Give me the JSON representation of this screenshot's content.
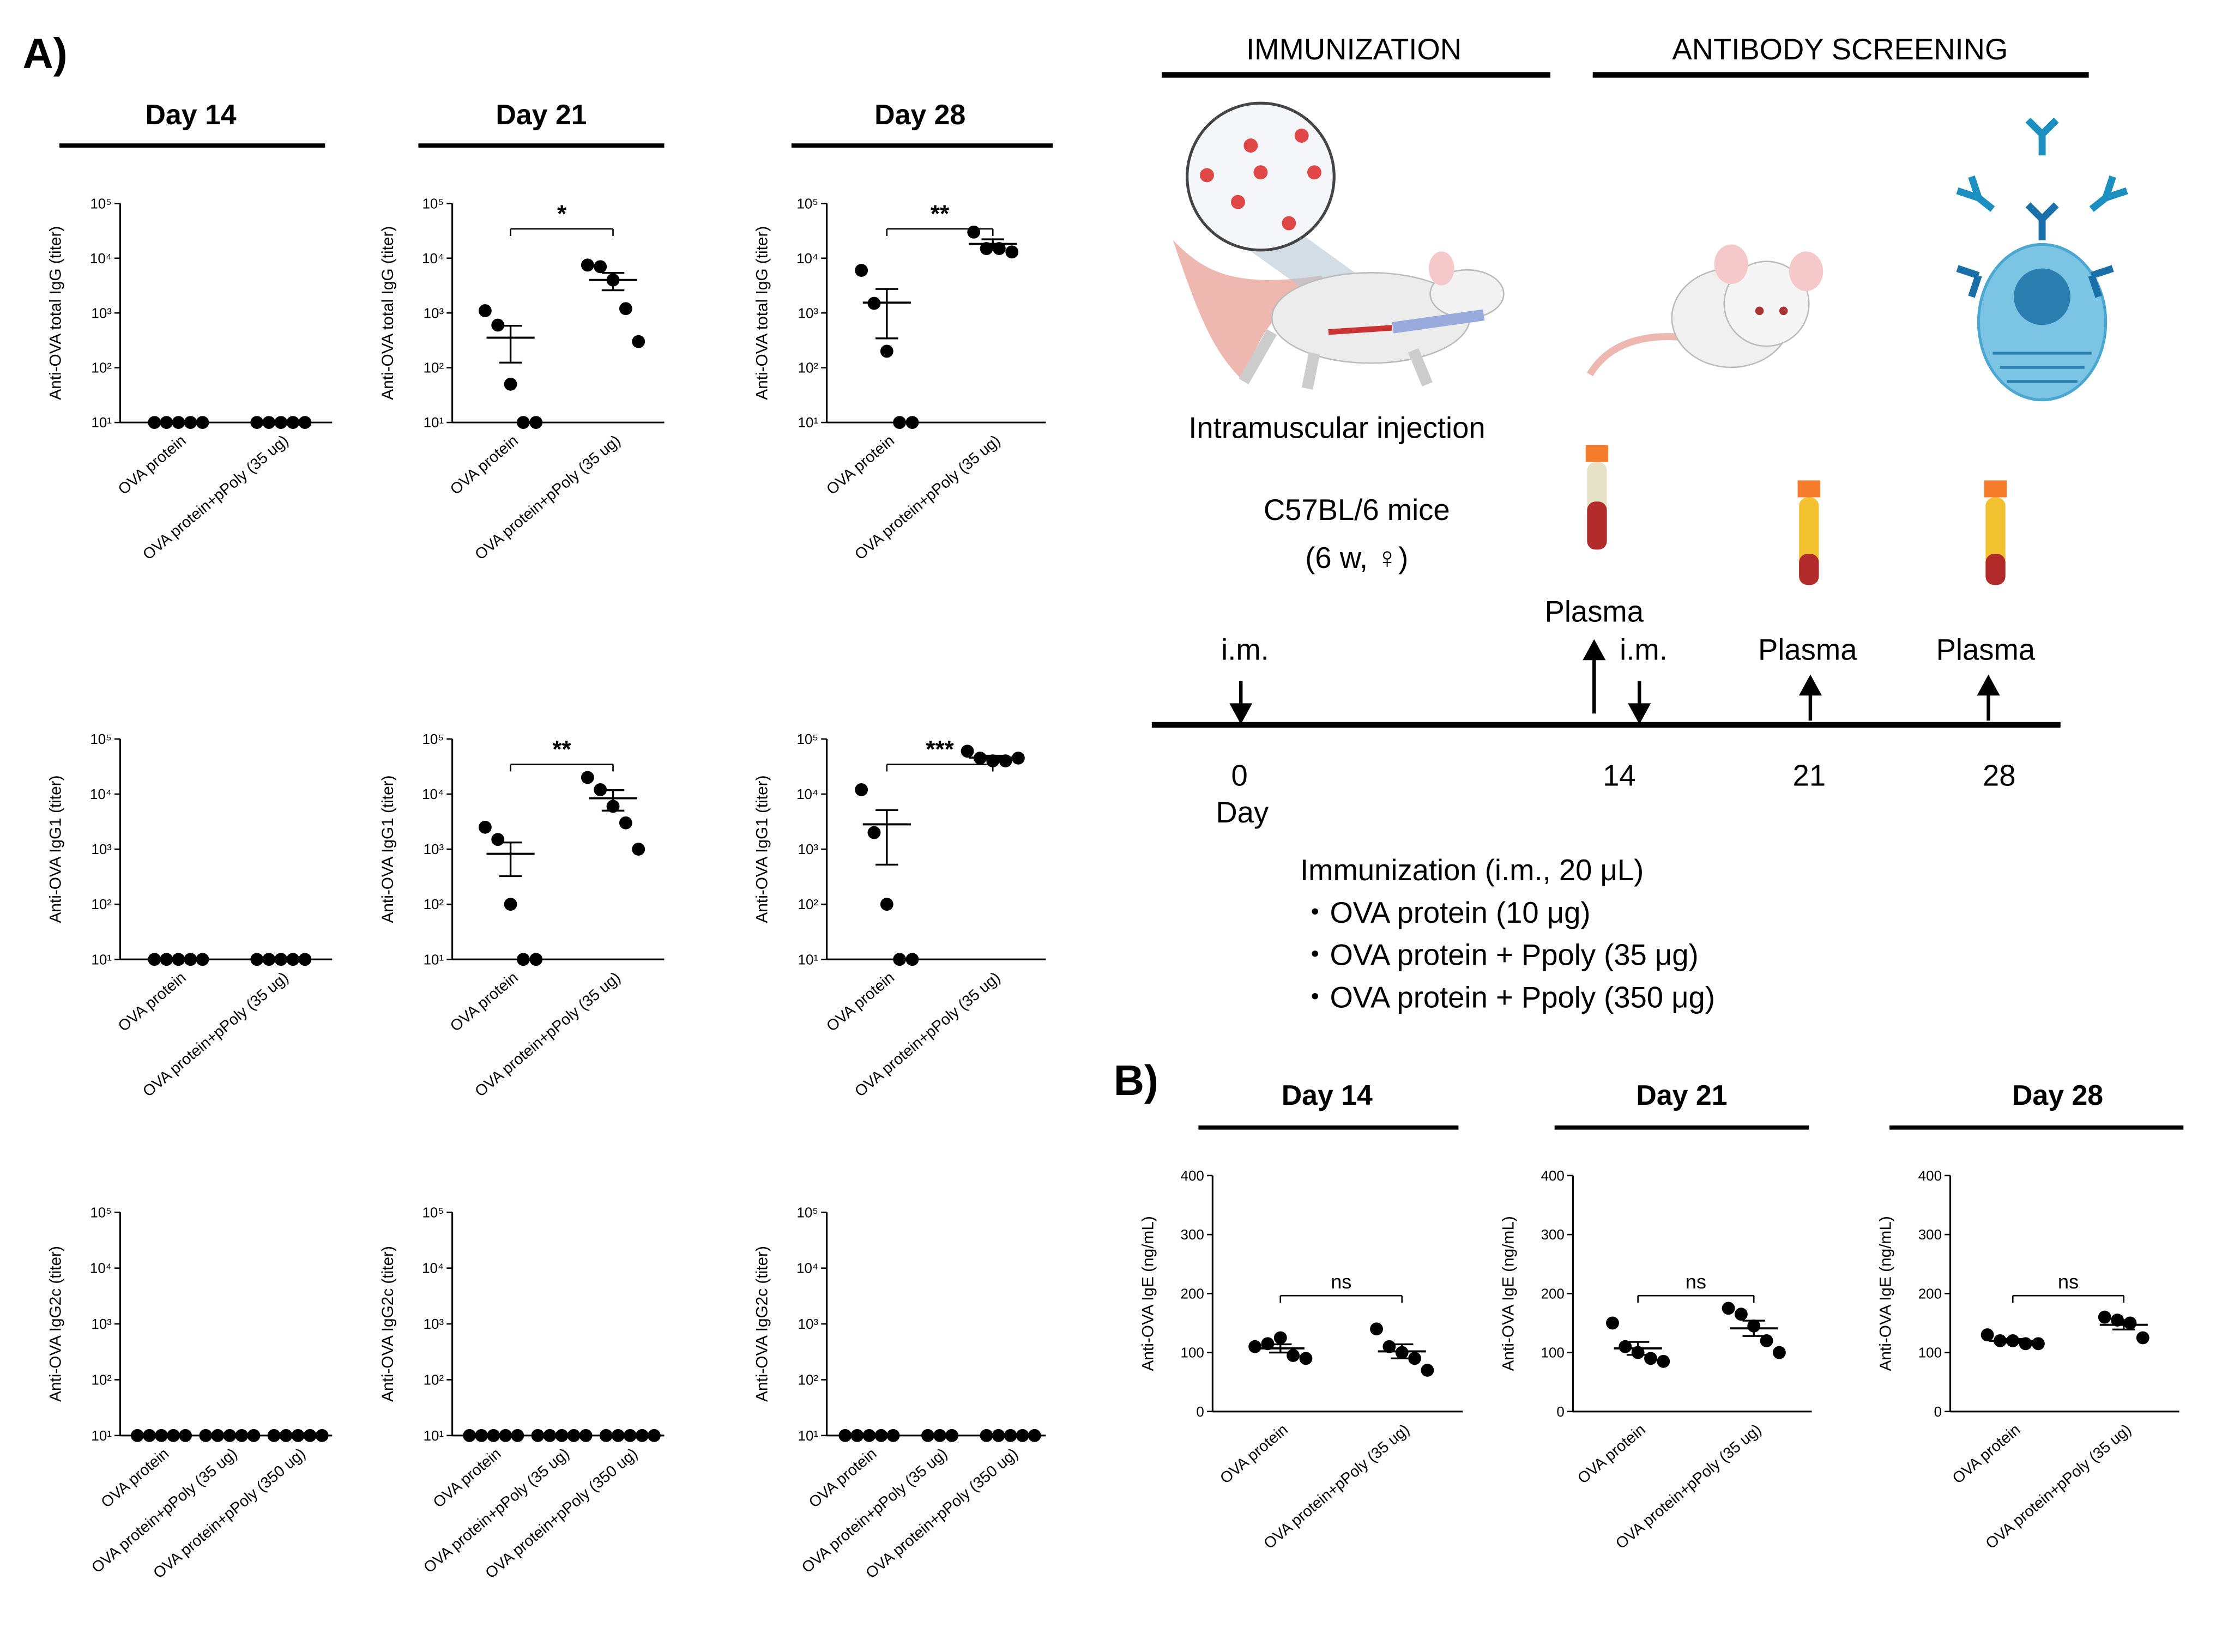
{
  "panel_labels": [
    "A)",
    "B)"
  ],
  "schematic": {
    "phase_titles": [
      "IMMUNIZATION",
      "ANTIBODY SCREENING"
    ],
    "injection_label": "Intramuscular injection",
    "mice": [
      "C57BL/6 mice",
      "(6 w, ♀)"
    ],
    "events": [
      "Plasma",
      "i.m.",
      "i.m.",
      "Plasma",
      "Plasma"
    ],
    "timeline": {
      "days": [
        0,
        14,
        21,
        28
      ],
      "unit": "Day"
    },
    "immunization": [
      "Immunization  (i.m., 20 μL)",
      "・OVA protein (10 μg)",
      "・OVA protein + Ppoly (35 μg)",
      "・OVA protein + Ppoly (350 μg)"
    ]
  },
  "chart_data": [
    {
      "type": "dot",
      "title": "Day 14",
      "ylabel": "Anti-OVA total IgG (titer)",
      "log_scale": true,
      "categories": [
        "OVA protein",
        "OVA protein+pPoly (35 ug)"
      ],
      "values": [
        [
          10,
          10,
          10,
          10,
          10
        ],
        [
          10,
          10,
          10,
          10,
          10
        ]
      ],
      "ylim": [
        10,
        100000
      ],
      "yticks": [
        {
          "value": 10,
          "label": "10¹"
        },
        {
          "value": 100,
          "label": "10²"
        },
        {
          "value": 1000,
          "label": "10³"
        },
        {
          "value": 10000,
          "label": "10⁴"
        },
        {
          "value": 100000,
          "label": "10⁵"
        }
      ]
    },
    {
      "type": "dot",
      "title": "Day 21",
      "ylabel": "Anti-OVA total IgG (titer)",
      "log_scale": true,
      "categories": [
        "OVA protein",
        "OVA protein+pPoly (35 ug)"
      ],
      "values": [
        [
          1100,
          600,
          50,
          10,
          10
        ],
        [
          7500,
          7000,
          4000,
          1200,
          300
        ]
      ],
      "mean": [
        354,
        4000
      ],
      "sem": [
        230,
        1400
      ],
      "annotation": "*",
      "ylim": [
        10,
        100000
      ],
      "yticks": [
        {
          "value": 10,
          "label": "10¹"
        },
        {
          "value": 100,
          "label": "10²"
        },
        {
          "value": 1000,
          "label": "10³"
        },
        {
          "value": 10000,
          "label": "10⁴"
        },
        {
          "value": 100000,
          "label": "10⁵"
        }
      ]
    },
    {
      "type": "dot",
      "title": "Day 28",
      "ylabel": "Anti-OVA total IgG (titer)",
      "log_scale": true,
      "categories": [
        "OVA protein",
        "OVA protein+pPoly (35 ug)"
      ],
      "values": [
        [
          6000,
          1500,
          200,
          10,
          10
        ],
        [
          30000,
          15000,
          15000,
          13000
        ]
      ],
      "mean": [
        1544,
        18250
      ],
      "sem": [
        1200,
        3900
      ],
      "annotation": "**",
      "ylim": [
        10,
        100000
      ],
      "yticks": [
        {
          "value": 10,
          "label": "10¹"
        },
        {
          "value": 100,
          "label": "10²"
        },
        {
          "value": 1000,
          "label": "10³"
        },
        {
          "value": 10000,
          "label": "10⁴"
        },
        {
          "value": 100000,
          "label": "10⁵"
        }
      ]
    },
    {
      "type": "dot",
      "ylabel": "Anti-OVA IgG1 (titer)",
      "log_scale": true,
      "categories": [
        "OVA protein",
        "OVA protein+pPoly (35 ug)"
      ],
      "values": [
        [
          10,
          10,
          10,
          10,
          10
        ],
        [
          10,
          10,
          10,
          10,
          10
        ]
      ],
      "ylim": [
        10,
        100000
      ],
      "yticks": [
        {
          "value": 10,
          "label": "10¹"
        },
        {
          "value": 100,
          "label": "10²"
        },
        {
          "value": 1000,
          "label": "10³"
        },
        {
          "value": 10000,
          "label": "10⁴"
        },
        {
          "value": 100000,
          "label": "10⁵"
        }
      ]
    },
    {
      "type": "dot",
      "ylabel": "Anti-OVA IgG1 (titer)",
      "log_scale": true,
      "categories": [
        "OVA protein",
        "OVA protein+pPoly (35 ug)"
      ],
      "values": [
        [
          2500,
          1500,
          100,
          10,
          10
        ],
        [
          20000,
          12000,
          6000,
          3000,
          1000
        ]
      ],
      "mean": [
        824,
        8400
      ],
      "sem": [
        500,
        3400
      ],
      "annotation": "**",
      "ylim": [
        10,
        100000
      ],
      "yticks": [
        {
          "value": 10,
          "label": "10¹"
        },
        {
          "value": 100,
          "label": "10²"
        },
        {
          "value": 1000,
          "label": "10³"
        },
        {
          "value": 10000,
          "label": "10⁴"
        },
        {
          "value": 100000,
          "label": "10⁵"
        }
      ]
    },
    {
      "type": "dot",
      "ylabel": "Anti-OVA IgG1 (titer)",
      "log_scale": true,
      "categories": [
        "OVA protein",
        "OVA protein+pPoly (35 ug)"
      ],
      "values": [
        [
          12000,
          2000,
          100,
          10,
          10
        ],
        [
          60000,
          45000,
          40000,
          40000,
          45000
        ]
      ],
      "mean": [
        2824,
        46000
      ],
      "sem": [
        2300,
        3700
      ],
      "annotation": "***",
      "ylim": [
        10,
        100000
      ],
      "yticks": [
        {
          "value": 10,
          "label": "10¹"
        },
        {
          "value": 100,
          "label": "10²"
        },
        {
          "value": 1000,
          "label": "10³"
        },
        {
          "value": 10000,
          "label": "10⁴"
        },
        {
          "value": 100000,
          "label": "10⁵"
        }
      ]
    },
    {
      "type": "dot",
      "ylabel": "Anti-OVA IgG2c (titer)",
      "log_scale": true,
      "categories": [
        "OVA protein",
        "OVA protein+pPoly (35 ug)",
        "OVA protein+pPoly (350 ug)"
      ],
      "values": [
        [
          10,
          10,
          10,
          10,
          10
        ],
        [
          10,
          10,
          10,
          10,
          10
        ],
        [
          10,
          10,
          10,
          10,
          10
        ]
      ],
      "ylim": [
        10,
        100000
      ],
      "yticks": [
        {
          "value": 10,
          "label": "10¹"
        },
        {
          "value": 100,
          "label": "10²"
        },
        {
          "value": 1000,
          "label": "10³"
        },
        {
          "value": 10000,
          "label": "10⁴"
        },
        {
          "value": 100000,
          "label": "10⁵"
        }
      ]
    },
    {
      "type": "dot",
      "ylabel": "Anti-OVA IgG2c (titer)",
      "log_scale": true,
      "categories": [
        "OVA protein",
        "OVA protein+pPoly (35 ug)",
        "OVA protein+pPoly (350 ug)"
      ],
      "values": [
        [
          10,
          10,
          10,
          10,
          10
        ],
        [
          10,
          10,
          10,
          10,
          10
        ],
        [
          10,
          10,
          10,
          10,
          10
        ]
      ],
      "ylim": [
        10,
        100000
      ],
      "yticks": [
        {
          "value": 10,
          "label": "10¹"
        },
        {
          "value": 100,
          "label": "10²"
        },
        {
          "value": 1000,
          "label": "10³"
        },
        {
          "value": 10000,
          "label": "10⁴"
        },
        {
          "value": 100000,
          "label": "10⁵"
        }
      ]
    },
    {
      "type": "dot",
      "ylabel": "Anti-OVA IgG2c (titer)",
      "log_scale": true,
      "categories": [
        "OVA protein",
        "OVA protein+pPoly (35 ug)",
        "OVA protein+pPoly (350 ug)"
      ],
      "values": [
        [
          10,
          10,
          10,
          10,
          10
        ],
        [
          10,
          10,
          10
        ],
        [
          10,
          10,
          10,
          10,
          10
        ]
      ],
      "ylim": [
        10,
        100000
      ],
      "yticks": [
        {
          "value": 10,
          "label": "10¹"
        },
        {
          "value": 100,
          "label": "10²"
        },
        {
          "value": 1000,
          "label": "10³"
        },
        {
          "value": 10000,
          "label": "10⁴"
        },
        {
          "value": 100000,
          "label": "10⁵"
        }
      ]
    },
    {
      "type": "dot",
      "title": "Day 14",
      "ylabel": "Anti-OVA IgE (ng/mL)",
      "log_scale": false,
      "categories": [
        "OVA protein",
        "OVA protein+pPoly (35 ug)"
      ],
      "values": [
        [
          110,
          115,
          125,
          95,
          90
        ],
        [
          140,
          110,
          100,
          90,
          70
        ]
      ],
      "mean": [
        107,
        102
      ],
      "sem": [
        7,
        12
      ],
      "annotation": "ns",
      "ylim": [
        0,
        400
      ],
      "yticks": [
        0,
        100,
        200,
        300,
        400
      ]
    },
    {
      "type": "dot",
      "title": "Day 21",
      "ylabel": "Anti-OVA IgE (ng/mL)",
      "log_scale": false,
      "categories": [
        "OVA protein",
        "OVA protein+pPoly (35 ug)"
      ],
      "values": [
        [
          150,
          110,
          100,
          90,
          85
        ],
        [
          175,
          165,
          145,
          120,
          100
        ]
      ],
      "mean": [
        107,
        141
      ],
      "sem": [
        11,
        13
      ],
      "annotation": "ns",
      "ylim": [
        0,
        400
      ],
      "yticks": [
        0,
        100,
        200,
        300,
        400
      ]
    },
    {
      "type": "dot",
      "title": "Day 28",
      "ylabel": "Anti-OVA IgE (ng/mL)",
      "log_scale": false,
      "categories": [
        "OVA protein",
        "OVA protein+pPoly (35 ug)"
      ],
      "values": [
        [
          130,
          120,
          120,
          115,
          115
        ],
        [
          160,
          155,
          150,
          125
        ]
      ],
      "mean": [
        120,
        147
      ],
      "sem": [
        3,
        8
      ],
      "annotation": "ns",
      "ylim": [
        0,
        400
      ],
      "yticks": [
        0,
        100,
        200,
        300,
        400
      ]
    }
  ]
}
